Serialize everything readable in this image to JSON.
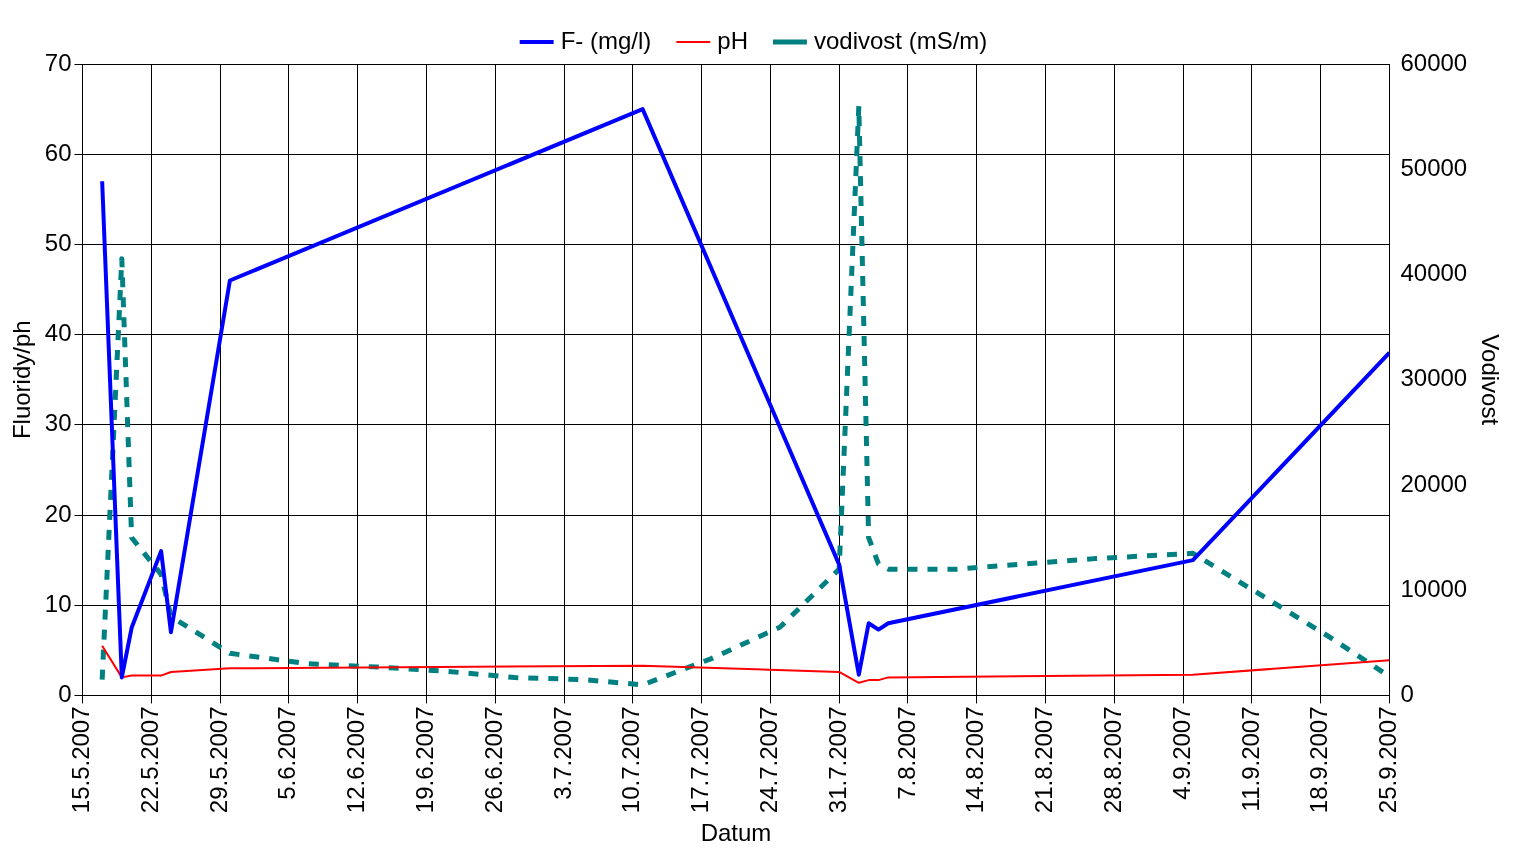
{
  "chart_data": {
    "type": "line",
    "xlabel": "Datum",
    "ylabel": "Fluoridy/ph",
    "y2label": "Vodivost",
    "xlim": [
      "2007-05-15",
      "2007-09-25"
    ],
    "xticks": [
      {
        "value": "2007-05-15",
        "label": "15.5.2007"
      },
      {
        "value": "2007-05-22",
        "label": "22.5.2007"
      },
      {
        "value": "2007-05-29",
        "label": "29.5.2007"
      },
      {
        "value": "2007-06-05",
        "label": "5.6.2007"
      },
      {
        "value": "2007-06-12",
        "label": "12.6.2007"
      },
      {
        "value": "2007-06-19",
        "label": "19.6.2007"
      },
      {
        "value": "2007-06-26",
        "label": "26.6.2007"
      },
      {
        "value": "2007-07-03",
        "label": "3.7.2007"
      },
      {
        "value": "2007-07-10",
        "label": "10.7.2007"
      },
      {
        "value": "2007-07-17",
        "label": "17.7.2007"
      },
      {
        "value": "2007-07-24",
        "label": "24.7.2007"
      },
      {
        "value": "2007-07-31",
        "label": "31.7.2007"
      },
      {
        "value": "2007-08-07",
        "label": "7.8.2007"
      },
      {
        "value": "2007-08-14",
        "label": "14.8.2007"
      },
      {
        "value": "2007-08-21",
        "label": "21.8.2007"
      },
      {
        "value": "2007-08-28",
        "label": "28.8.2007"
      },
      {
        "value": "2007-09-04",
        "label": "4.9.2007"
      },
      {
        "value": "2007-09-11",
        "label": "11.9.2007"
      },
      {
        "value": "2007-09-18",
        "label": "18.9.2007"
      },
      {
        "value": "2007-09-25",
        "label": "25.9.2007"
      }
    ],
    "ylim": [
      0,
      70
    ],
    "yticks": [
      0,
      10,
      20,
      30,
      40,
      50,
      60,
      70
    ],
    "y2lim": [
      0,
      60000
    ],
    "y2ticks": [
      0,
      10000,
      20000,
      30000,
      40000,
      50000,
      60000
    ],
    "grid": true,
    "legend": "top",
    "marker": "none",
    "series": [
      {
        "name": "F- (mg/l)",
        "color": "#0000ff",
        "line_style": "solid",
        "x": [
          "2007-05-17",
          "2007-05-19",
          "2007-05-20",
          "2007-05-23",
          "2007-05-24",
          "2007-05-30",
          "2007-07-11",
          "2007-07-31",
          "2007-08-02",
          "2007-08-03",
          "2007-08-04",
          "2007-08-05",
          "2007-09-05",
          "2007-09-25"
        ],
        "values": [
          57,
          2,
          7.5,
          16,
          7,
          46,
          65,
          14.5,
          2.3,
          8,
          7.3,
          8,
          15,
          38
        ]
      },
      {
        "name": "pH",
        "color": "#ff0000",
        "line_style": "solid",
        "x": [
          "2007-05-17",
          "2007-05-19",
          "2007-05-20",
          "2007-05-23",
          "2007-05-24",
          "2007-05-30",
          "2007-07-11",
          "2007-07-31",
          "2007-08-02",
          "2007-08-03",
          "2007-08-04",
          "2007-08-05",
          "2007-09-05",
          "2007-09-25"
        ],
        "values": [
          5.5,
          2,
          2.2,
          2.2,
          2.6,
          3,
          3.3,
          2.6,
          1.4,
          1.7,
          1.7,
          2,
          2.3,
          3.9
        ]
      },
      {
        "name": "vodivost (mS/m)",
        "color": "#008080",
        "line_style": "dashed",
        "axis": "y2",
        "x": [
          "2007-05-17",
          "2007-05-19",
          "2007-05-20",
          "2007-05-23",
          "2007-05-24",
          "2007-05-30",
          "2007-06-07",
          "2007-06-14",
          "2007-06-21",
          "2007-06-28",
          "2007-07-05",
          "2007-07-11",
          "2007-07-18",
          "2007-07-25",
          "2007-07-31",
          "2007-08-02",
          "2007-08-03",
          "2007-08-04",
          "2007-08-05",
          "2007-08-12",
          "2007-08-19",
          "2007-08-26",
          "2007-09-05",
          "2007-09-12",
          "2007-09-19",
          "2007-09-25"
        ],
        "values": [
          1500,
          41500,
          15000,
          11500,
          7500,
          4000,
          3000,
          2700,
          2300,
          1700,
          1500,
          1000,
          3500,
          6500,
          12000,
          56000,
          15000,
          12500,
          12000,
          12000,
          12500,
          13000,
          13500,
          9500,
          5500,
          1800
        ]
      }
    ]
  }
}
